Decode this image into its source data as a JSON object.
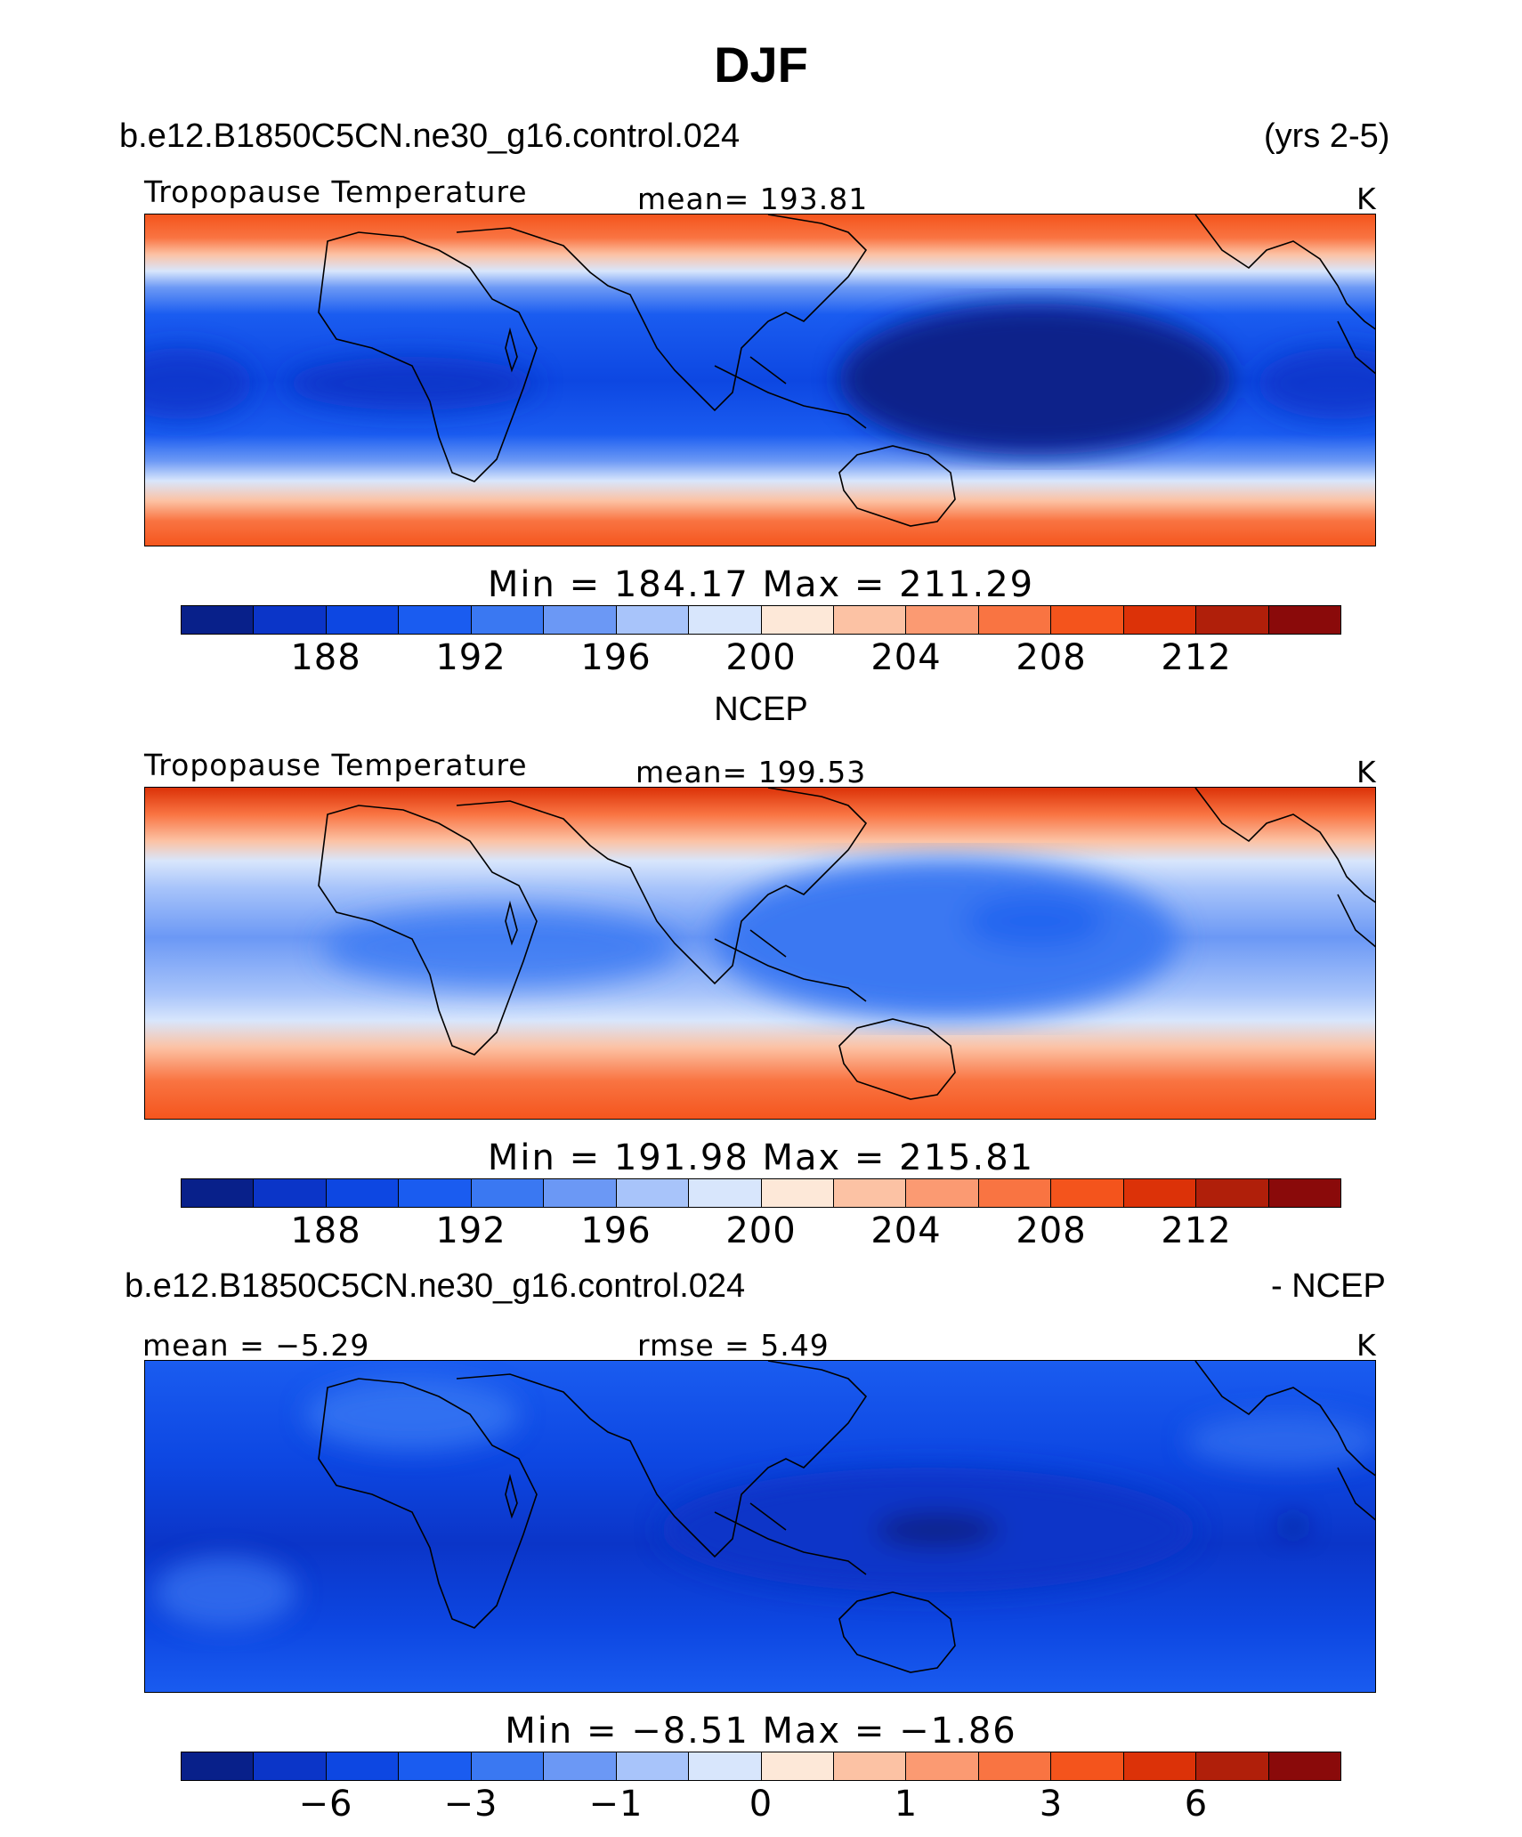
{
  "title": "DJF",
  "panel1": {
    "case": "b.e12.B1850C5CN.ne30_g16.control.024",
    "years": "(yrs 2-5)",
    "variable": "Tropopause Temperature",
    "mean": "mean=  193.81",
    "units": "K",
    "minmax": "Min  =  184.17  Max  =  211.29"
  },
  "panel2": {
    "heading": "NCEP",
    "variable": "Tropopause Temperature",
    "mean": "mean=  199.53",
    "units": "K",
    "minmax": "Min  =  191.98  Max  =  215.81"
  },
  "panel3": {
    "case": "b.e12.B1850C5CN.ne30_g16.control.024",
    "suffix": "- NCEP",
    "mean": "mean =   −5.29",
    "rmse": "rmse =      5.49",
    "units": "K",
    "minmax": "Min  =   −8.51  Max  =   −1.86"
  },
  "colorbar": {
    "colors": [
      "#08208a",
      "#0b35c8",
      "#0d47e2",
      "#1a5cf0",
      "#3a78f2",
      "#6b98f5",
      "#a8c4fa",
      "#d8e6fc",
      "#fde8d8",
      "#fcc2a4",
      "#fb9a72",
      "#f97442",
      "#f4541c",
      "#dc3208",
      "#b01f0a",
      "#8a0a0a"
    ],
    "abs_ticks": [
      "188",
      "192",
      "196",
      "200",
      "204",
      "208",
      "212"
    ],
    "diff_ticks": [
      "−6",
      "−3",
      "−1",
      "0",
      "1",
      "3",
      "6"
    ]
  }
}
